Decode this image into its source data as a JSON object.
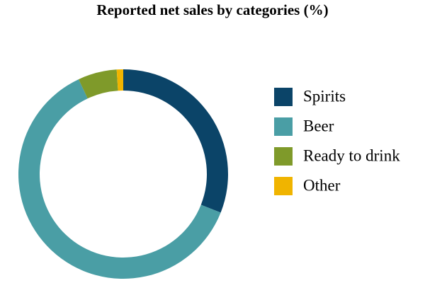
{
  "chart_data": {
    "type": "pie",
    "donut": true,
    "title": "Reported net sales by categories (%)",
    "categories": [
      "Spirits",
      "Beer",
      "Ready to drink",
      "Other"
    ],
    "values": [
      31,
      62,
      6,
      1
    ],
    "colors": [
      "#0b4468",
      "#4a9ea5",
      "#7f9a2a",
      "#f0b400"
    ]
  }
}
